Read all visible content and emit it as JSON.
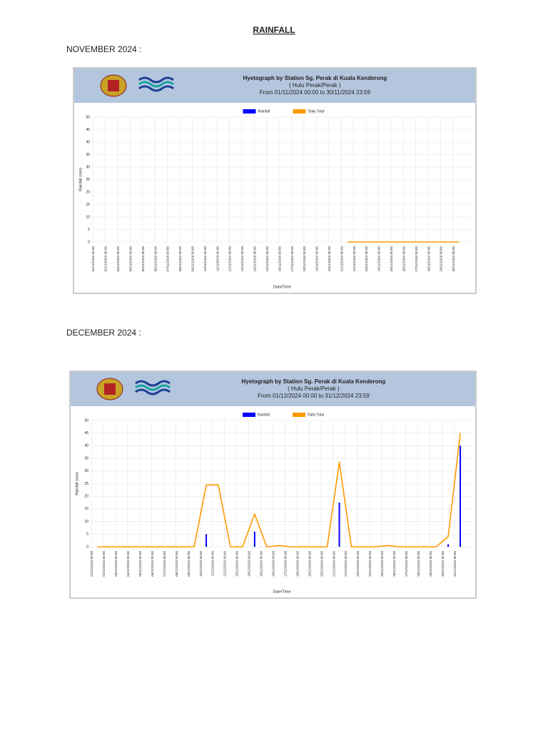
{
  "document": {
    "title": "RAINFALL",
    "sections": [
      "NOVEMBER 2024 :",
      "DECEMBER 2024 :"
    ]
  },
  "chart_data": [
    {
      "type": "line",
      "title": "Hyetograph by Station  Sg. Perak di Kuala Kenderong",
      "subtitle": "( Hulu Perak/Perak )",
      "period": "From 01/11/2024 00:00 to 30/11/2024 23:59",
      "x_label": "Date/Time",
      "y_label": "Rainfall (mm)",
      "categories": [
        "01/11/2024 00:00",
        "02/11/2024 00:00",
        "03/11/2024 00:00",
        "04/11/2024 00:00",
        "05/11/2024 00:00",
        "06/11/2024 00:00",
        "07/11/2024 00:00",
        "08/11/2024 00:00",
        "09/11/2024 00:00",
        "10/11/2024 00:00",
        "11/11/2024 00:00",
        "12/11/2024 00:00",
        "13/11/2024 00:00",
        "14/11/2024 00:00",
        "15/11/2024 00:00",
        "16/11/2024 00:00",
        "17/11/2024 00:00",
        "18/11/2024 00:00",
        "19/11/2024 00:00",
        "20/11/2024 00:00",
        "21/11/2024 00:00",
        "22/11/2024 00:00",
        "23/11/2024 00:00",
        "24/11/2024 00:00",
        "25/11/2024 00:00",
        "26/11/2024 00:00",
        "27/11/2024 00:00",
        "28/11/2024 00:00",
        "29/11/2024 00:00",
        "30/11/2024 00:00"
      ],
      "series": [
        {
          "name": "Rainfall",
          "type": "bar",
          "color": "#0000ff",
          "values": [
            null,
            null,
            null,
            null,
            null,
            null,
            null,
            null,
            null,
            null,
            null,
            null,
            null,
            null,
            null,
            null,
            null,
            null,
            null,
            null,
            0,
            0,
            0,
            0,
            0,
            0,
            0,
            0,
            0,
            0
          ]
        },
        {
          "name": "Daily Total",
          "type": "line",
          "color": "#ff9900",
          "values": [
            null,
            null,
            null,
            null,
            null,
            null,
            null,
            null,
            null,
            null,
            null,
            null,
            null,
            null,
            null,
            null,
            null,
            null,
            null,
            null,
            0,
            0,
            0,
            0,
            0,
            0,
            0,
            0,
            0,
            0
          ]
        }
      ],
      "ylim": [
        0,
        50
      ],
      "yticks": [
        0,
        5,
        10,
        15,
        20,
        25,
        30,
        35,
        40,
        45,
        50
      ],
      "grid": true
    },
    {
      "type": "line",
      "title": "Hyetograph by Station  Sg. Perak di Kuala Kenderong",
      "subtitle": "( Hulu Perak/Perak )",
      "period": "From 01/12/2024 00:00 to 31/12/2024 23:59",
      "x_label": "Date/Time",
      "y_label": "Rainfall (mm)",
      "categories": [
        "01/12/2024 00:00",
        "02/12/2024 00:00",
        "03/12/2024 00:00",
        "04/12/2024 00:00",
        "05/12/2024 00:00",
        "06/12/2024 00:00",
        "07/12/2024 00:00",
        "08/12/2024 00:00",
        "09/12/2024 00:00",
        "10/12/2024 00:00",
        "11/12/2024 00:00",
        "12/12/2024 00:00",
        "13/12/2024 00:00",
        "14/12/2024 00:00",
        "15/12/2024 00:00",
        "16/12/2024 00:00",
        "17/12/2024 00:00",
        "18/12/2024 00:00",
        "19/12/2024 00:00",
        "20/12/2024 00:00",
        "21/12/2024 00:00",
        "22/12/2024 00:00",
        "23/12/2024 00:00",
        "24/12/2024 00:00",
        "25/12/2024 00:00",
        "26/12/2024 00:00",
        "27/12/2024 00:00",
        "28/12/2024 00:00",
        "29/12/2024 00:00",
        "30/12/2024 00:00",
        "31/12/2024 00:00"
      ],
      "series": [
        {
          "name": "Rainfall",
          "type": "bar",
          "color": "#0000ff",
          "values": [
            0,
            0,
            0,
            0,
            0,
            0,
            0,
            0,
            0,
            5,
            0,
            0,
            0,
            6,
            0,
            0,
            0,
            0,
            0,
            0,
            17.5,
            0,
            0,
            0,
            0,
            0,
            0,
            0,
            0,
            1,
            40
          ]
        },
        {
          "name": "Daily Total",
          "type": "line",
          "color": "#ff9900",
          "values": [
            0,
            0,
            0,
            0,
            0,
            0,
            0,
            0,
            0,
            24.5,
            24.5,
            0,
            0,
            13,
            0,
            0.5,
            0,
            0,
            0,
            0,
            33.5,
            0,
            0,
            0,
            0.5,
            0,
            0,
            0,
            0,
            4,
            45
          ]
        }
      ],
      "ylim": [
        0,
        50
      ],
      "yticks": [
        0,
        5,
        10,
        15,
        20,
        25,
        30,
        35,
        40,
        45,
        50
      ],
      "grid": true
    }
  ]
}
